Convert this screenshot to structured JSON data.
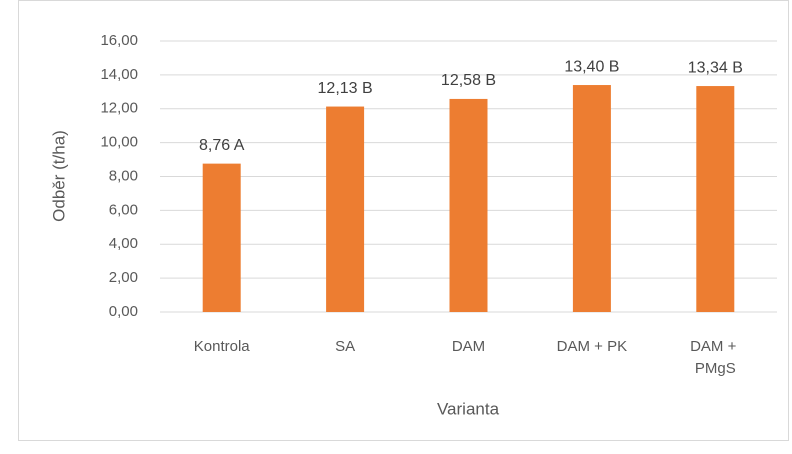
{
  "chart_data": {
    "type": "bar",
    "categories": [
      "Kontrola",
      "SA",
      "DAM",
      "DAM + PK",
      "DAM + PMgS"
    ],
    "values": [
      8.76,
      12.13,
      12.58,
      13.4,
      13.34
    ],
    "value_labels": [
      "8,76 A",
      "12,13 B",
      "12,58 B",
      "13,40 B",
      "13,34 B"
    ],
    "color": "#ed7d31",
    "x_label": "Varianta",
    "y_label": "Odběr (t/ha)",
    "ylim": [
      0,
      16
    ],
    "yticks": [
      {
        "value": 0,
        "label": "0,00"
      },
      {
        "value": 2,
        "label": "2,00"
      },
      {
        "value": 4,
        "label": "4,00"
      },
      {
        "value": 6,
        "label": "6,00"
      },
      {
        "value": 8,
        "label": "8,00"
      },
      {
        "value": 10,
        "label": "10,00"
      },
      {
        "value": 12,
        "label": "12,00"
      },
      {
        "value": 14,
        "label": "14,00"
      },
      {
        "value": 16,
        "label": "16,00"
      }
    ],
    "grid": true
  }
}
